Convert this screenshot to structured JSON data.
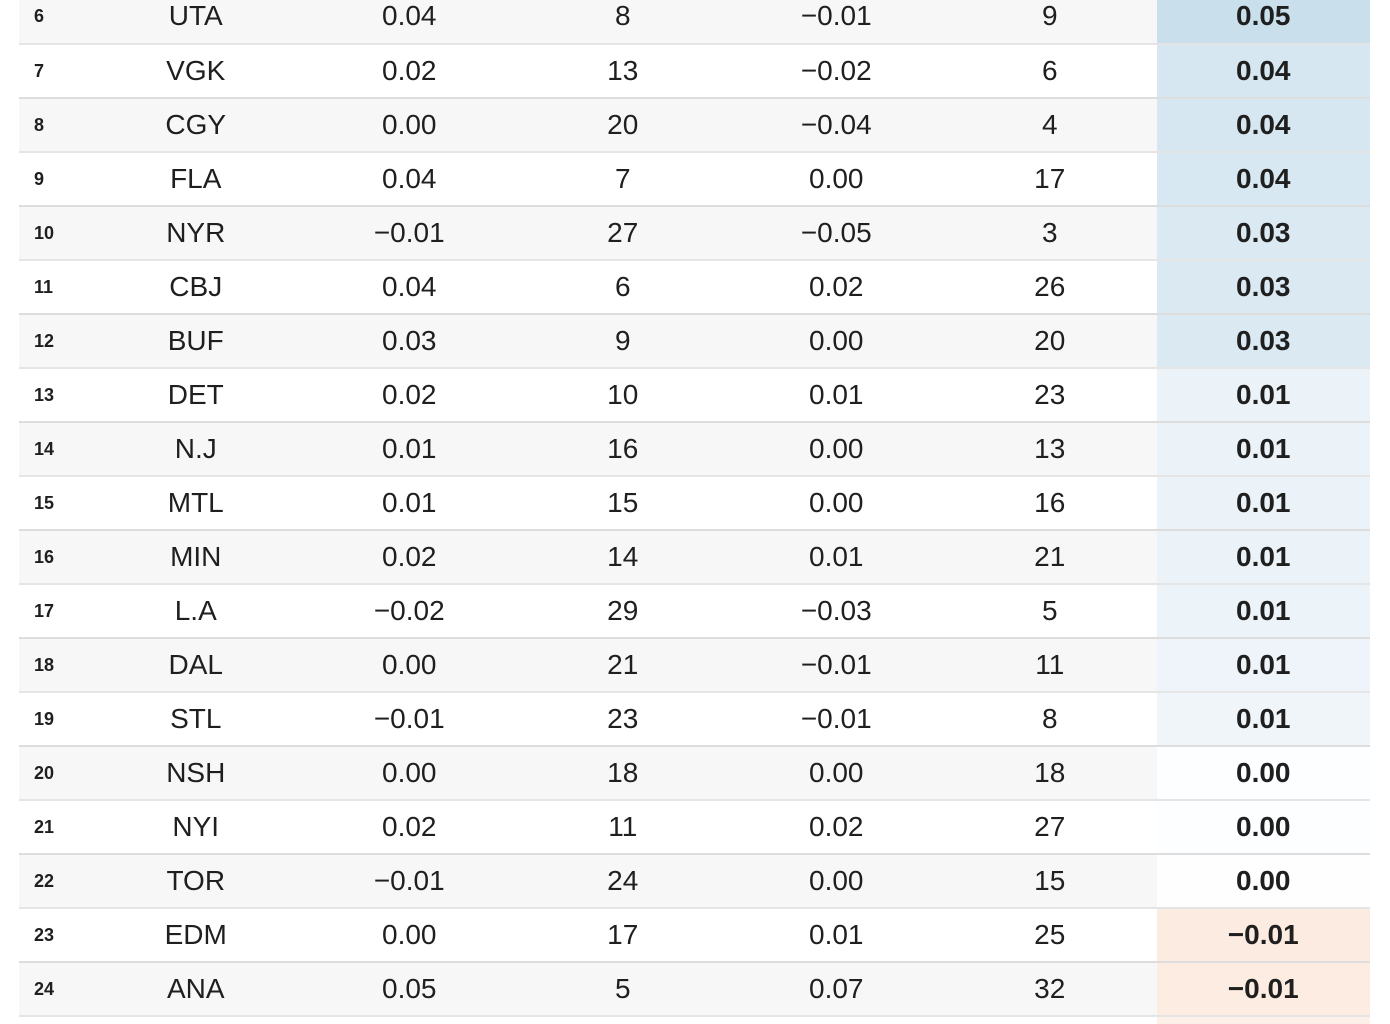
{
  "chart_data": {
    "type": "table",
    "rows": [
      {
        "rank": "6",
        "team": "UTA",
        "stats": [
          "0.04",
          "8",
          "−0.01",
          "9"
        ],
        "rating": "0.05",
        "rating_bg": "#c9dfec"
      },
      {
        "rank": "7",
        "team": "VGK",
        "stats": [
          "0.02",
          "13",
          "−0.02",
          "6"
        ],
        "rating": "0.04",
        "rating_bg": "#d7e7f1"
      },
      {
        "rank": "8",
        "team": "CGY",
        "stats": [
          "0.00",
          "20",
          "−0.04",
          "4"
        ],
        "rating": "0.04",
        "rating_bg": "#d7e7f1"
      },
      {
        "rank": "9",
        "team": "FLA",
        "stats": [
          "0.04",
          "7",
          "0.00",
          "17"
        ],
        "rating": "0.04",
        "rating_bg": "#d8e8f2"
      },
      {
        "rank": "10",
        "team": "NYR",
        "stats": [
          "−0.01",
          "27",
          "−0.05",
          "3"
        ],
        "rating": "0.03",
        "rating_bg": "#dbe9f2"
      },
      {
        "rank": "11",
        "team": "CBJ",
        "stats": [
          "0.04",
          "6",
          "0.02",
          "26"
        ],
        "rating": "0.03",
        "rating_bg": "#dbe9f2"
      },
      {
        "rank": "12",
        "team": "BUF",
        "stats": [
          "0.03",
          "9",
          "0.00",
          "20"
        ],
        "rating": "0.03",
        "rating_bg": "#dbe9f2"
      },
      {
        "rank": "13",
        "team": "DET",
        "stats": [
          "0.02",
          "10",
          "0.01",
          "23"
        ],
        "rating": "0.01",
        "rating_bg": "#ebf2f8"
      },
      {
        "rank": "14",
        "team": "N.J",
        "stats": [
          "0.01",
          "16",
          "0.00",
          "13"
        ],
        "rating": "0.01",
        "rating_bg": "#ecf3f8"
      },
      {
        "rank": "15",
        "team": "MTL",
        "stats": [
          "0.01",
          "15",
          "0.00",
          "16"
        ],
        "rating": "0.01",
        "rating_bg": "#ecf3f8"
      },
      {
        "rank": "16",
        "team": "MIN",
        "stats": [
          "0.02",
          "14",
          "0.01",
          "21"
        ],
        "rating": "0.01",
        "rating_bg": "#ecf3f8"
      },
      {
        "rank": "17",
        "team": "L.A",
        "stats": [
          "−0.02",
          "29",
          "−0.03",
          "5"
        ],
        "rating": "0.01",
        "rating_bg": "#edf4f9"
      },
      {
        "rank": "18",
        "team": "DAL",
        "stats": [
          "0.00",
          "21",
          "−0.01",
          "11"
        ],
        "rating": "0.01",
        "rating_bg": "#eef4f9"
      },
      {
        "rank": "19",
        "team": "STL",
        "stats": [
          "−0.01",
          "23",
          "−0.01",
          "8"
        ],
        "rating": "0.01",
        "rating_bg": "#f0f5fa"
      },
      {
        "rank": "20",
        "team": "NSH",
        "stats": [
          "0.00",
          "18",
          "0.00",
          "18"
        ],
        "rating": "0.00",
        "rating_bg": "#fdfeff"
      },
      {
        "rank": "21",
        "team": "NYI",
        "stats": [
          "0.02",
          "11",
          "0.02",
          "27"
        ],
        "rating": "0.00",
        "rating_bg": "#fdfeff"
      },
      {
        "rank": "22",
        "team": "TOR",
        "stats": [
          "−0.01",
          "24",
          "0.00",
          "15"
        ],
        "rating": "0.00",
        "rating_bg": "#fefefe"
      },
      {
        "rank": "23",
        "team": "EDM",
        "stats": [
          "0.00",
          "17",
          "0.01",
          "25"
        ],
        "rating": "−0.01",
        "rating_bg": "#fcebe0"
      },
      {
        "rank": "24",
        "team": "ANA",
        "stats": [
          "0.05",
          "5",
          "0.07",
          "32"
        ],
        "rating": "−0.01",
        "rating_bg": "#fcece2"
      }
    ]
  },
  "table": {
    "zebra_color": "#f7f7f7",
    "row_bg_default": "#ffffff",
    "text_color": "#1f1f1f",
    "separator_color": "rgba(0,0,0,0.10)",
    "partial_next_row": {
      "row_bg": "#ffffff",
      "rating_bg": "#fdf0e9"
    }
  }
}
